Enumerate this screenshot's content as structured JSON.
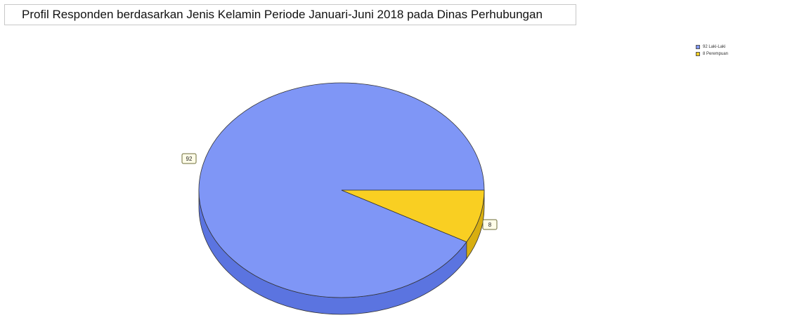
{
  "chart_data": {
    "type": "pie",
    "title": "Profil Responden berdasarkan Jenis Kelamin Periode Januari-Juni 2018 pada  Dinas Perhubungan",
    "slices": [
      {
        "label": "Laki-Laki",
        "value": 92,
        "data_label": "92",
        "legend_label": "92 Laki-Laki",
        "color": "#7f96f6",
        "side_color": "#5b74e0"
      },
      {
        "label": "Perempuan",
        "value": 8,
        "data_label": "8",
        "legend_label": "8 Perempuan",
        "color": "#f9cf22",
        "side_color": "#d8ae10"
      }
    ],
    "legend_position": "top-right"
  }
}
